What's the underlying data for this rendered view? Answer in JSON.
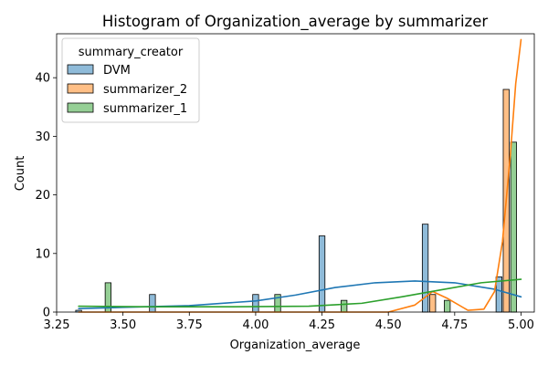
{
  "chart_data": {
    "type": "bar",
    "title": "Histogram of Organization_average by summarizer",
    "xlabel": "Organization_average",
    "ylabel": "Count",
    "xlim": [
      3.25,
      5.05
    ],
    "ylim": [
      0,
      47.5
    ],
    "x_ticks": [
      3.25,
      3.5,
      3.75,
      4.0,
      4.25,
      4.5,
      4.75,
      5.0
    ],
    "x_tick_labels": [
      "3.25",
      "3.50",
      "3.75",
      "4.00",
      "4.25",
      "4.50",
      "4.75",
      "5.00"
    ],
    "y_ticks": [
      0,
      10,
      20,
      30,
      40
    ],
    "y_tick_labels": [
      "0",
      "10",
      "20",
      "30",
      "40"
    ],
    "grid": false,
    "legend": {
      "title": "summary_creator",
      "placement": "top-left"
    },
    "bin_width": 0.0222,
    "series": [
      {
        "name": "DVM",
        "color": "#1f77b4",
        "bars": [
          {
            "x": 3.333,
            "count": 0.3
          },
          {
            "x": 3.611,
            "count": 3
          },
          {
            "x": 4.0,
            "count": 3
          },
          {
            "x": 4.25,
            "count": 13
          },
          {
            "x": 4.639,
            "count": 15
          },
          {
            "x": 4.917,
            "count": 6
          }
        ],
        "kde": [
          [
            3.333,
            0.6
          ],
          [
            3.5,
            0.8
          ],
          [
            3.75,
            1.1
          ],
          [
            4.0,
            1.9
          ],
          [
            4.15,
            2.9
          ],
          [
            4.3,
            4.2
          ],
          [
            4.45,
            5.0
          ],
          [
            4.6,
            5.3
          ],
          [
            4.75,
            5.0
          ],
          [
            4.9,
            3.9
          ],
          [
            5.0,
            2.6
          ]
        ]
      },
      {
        "name": "summarizer_2",
        "color": "#ff7f0e",
        "bars": [
          {
            "x": 4.667,
            "count": 3
          },
          {
            "x": 4.944,
            "count": 38
          }
        ],
        "kde": [
          [
            3.333,
            0
          ],
          [
            4.5,
            0
          ],
          [
            4.6,
            1.2
          ],
          [
            4.667,
            3.5
          ],
          [
            4.72,
            2.4
          ],
          [
            4.8,
            0.3
          ],
          [
            4.86,
            0.5
          ],
          [
            4.9,
            3.5
          ],
          [
            4.93,
            12
          ],
          [
            4.96,
            27
          ],
          [
            4.98,
            39
          ],
          [
            5.0,
            46.5
          ]
        ]
      },
      {
        "name": "summarizer_1",
        "color": "#2ca02c",
        "bars": [
          {
            "x": 3.444,
            "count": 5
          },
          {
            "x": 4.083,
            "count": 3
          },
          {
            "x": 4.333,
            "count": 2
          },
          {
            "x": 4.722,
            "count": 2
          },
          {
            "x": 4.972,
            "count": 29
          }
        ],
        "kde": [
          [
            3.333,
            1.0
          ],
          [
            3.6,
            0.9
          ],
          [
            3.9,
            0.9
          ],
          [
            4.2,
            1.0
          ],
          [
            4.4,
            1.5
          ],
          [
            4.55,
            2.6
          ],
          [
            4.7,
            3.8
          ],
          [
            4.85,
            5.0
          ],
          [
            5.0,
            5.6
          ]
        ]
      }
    ]
  }
}
